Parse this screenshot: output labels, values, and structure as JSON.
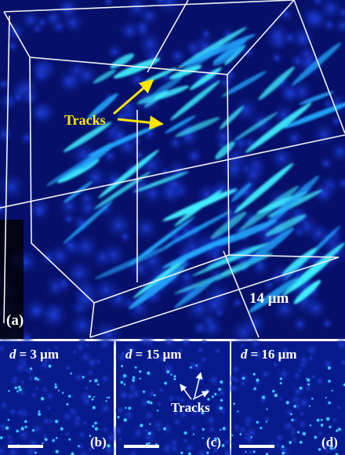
{
  "panels": [
    {
      "label": "(a)",
      "annotation": "Tracks",
      "scale": "14 μm"
    },
    {
      "label": "(b)",
      "var": "d",
      "depth": "= 3 μm"
    },
    {
      "label": "(c)",
      "var": "d",
      "depth": "= 15 μm",
      "annotation": "Tracks"
    },
    {
      "label": "(d)",
      "var": "d",
      "depth": "= 16 μm"
    }
  ]
}
